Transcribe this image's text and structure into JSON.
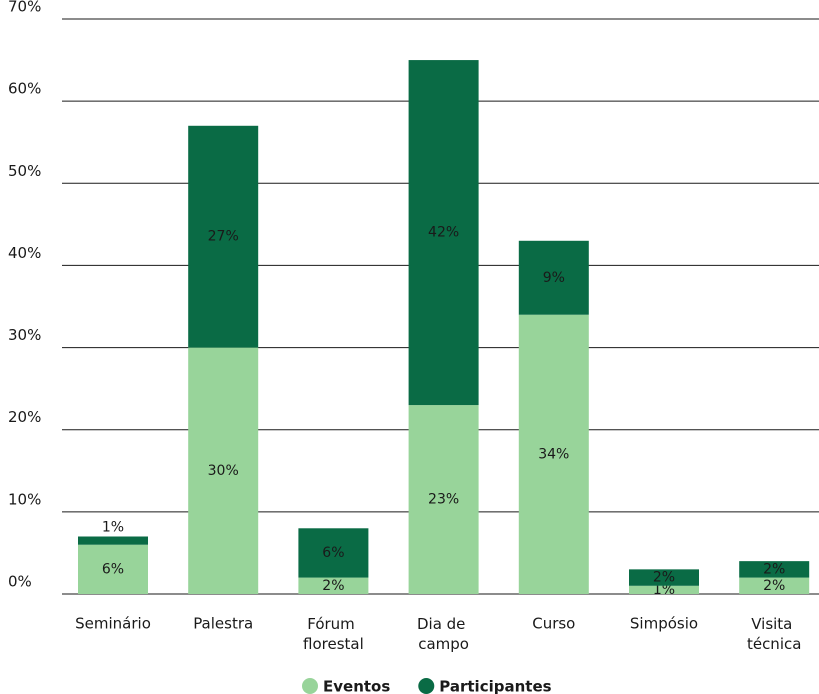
{
  "chart_data": {
    "type": "stacked_bar",
    "categories": [
      "Seminário",
      "Palestra",
      "Fórum florestal",
      "Dia de campo",
      "Curso",
      "Simpósio",
      "Visita técnica"
    ],
    "series": [
      {
        "name": "Eventos",
        "color": "#98d49a",
        "values": [
          6,
          30,
          2,
          23,
          34,
          1,
          2
        ],
        "value_labels": [
          "6%",
          "30%",
          "2%",
          "23%",
          "34%",
          "1%",
          "2%"
        ]
      },
      {
        "name": "Participantes",
        "color": "#0a6b45",
        "values": [
          1,
          27,
          6,
          42,
          9,
          2,
          2
        ],
        "value_labels": [
          "1%",
          "27%",
          "6%",
          "42%",
          "9%",
          "2%",
          "2%"
        ]
      }
    ],
    "ylim": [
      0,
      70
    ],
    "yticks": [
      {
        "value": 0,
        "label": "0%"
      },
      {
        "value": 10,
        "label": "10%"
      },
      {
        "value": 20,
        "label": "20%"
      },
      {
        "value": 30,
        "label": "30%"
      },
      {
        "value": 40,
        "label": "40%"
      },
      {
        "value": 50,
        "label": "50%"
      },
      {
        "value": 60,
        "label": "60%"
      },
      {
        "value": 70,
        "label": "70%"
      }
    ],
    "grid": true,
    "legend": "bottom"
  }
}
